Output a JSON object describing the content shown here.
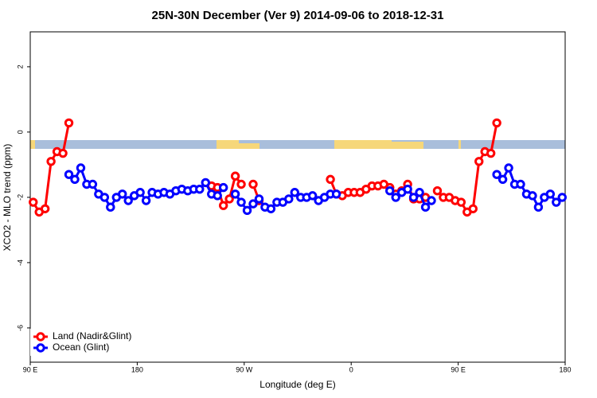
{
  "chart_data": {
    "type": "line",
    "title": "25N-30N December (Ver 9)   2014-09-06 to 2018-12-31",
    "x_label": "Longitude (deg E)",
    "y_label": "XCO2 - MLO trend (ppm)",
    "x": [
      92.5,
      97.5,
      102.5,
      107.5,
      112.5,
      117.5,
      122.5,
      127.5,
      132.5,
      137.5,
      142.5,
      147.5,
      152.5,
      157.5,
      162.5,
      167.5,
      172.5,
      177.5,
      182.5,
      187.5,
      192.5,
      197.5,
      202.5,
      207.5,
      212.5,
      217.5,
      222.5,
      227.5,
      232.5,
      237.5,
      242.5,
      247.5,
      252.5,
      257.5,
      262.5,
      267.5,
      272.5,
      277.5,
      282.5,
      287.5,
      292.5,
      297.5,
      302.5,
      307.5,
      312.5,
      317.5,
      322.5,
      327.5,
      332.5,
      337.5,
      342.5,
      347.5,
      352.5,
      357.5,
      362.5,
      367.5,
      372.5,
      377.5,
      382.5,
      387.5,
      392.5,
      397.5,
      402.5,
      407.5,
      412.5,
      417.5,
      422.5,
      427.5,
      432.5,
      437.5,
      442.5,
      447.5,
      452.5,
      457.5,
      462.5,
      467.5,
      472.5,
      477.5,
      482.5,
      487.5,
      492.5,
      497.5,
      502.5,
      507.5,
      512.5,
      517.5,
      522.5,
      527.5,
      532.5,
      537.5
    ],
    "series": [
      {
        "name": "Land (Nadir&Glint)",
        "color": "#ff0000",
        "values": [
          -2.15,
          -2.45,
          -2.35,
          -0.9,
          -0.6,
          -0.65,
          0.28,
          null,
          null,
          null,
          null,
          null,
          null,
          null,
          null,
          null,
          null,
          null,
          null,
          null,
          null,
          null,
          null,
          null,
          null,
          null,
          null,
          null,
          null,
          null,
          -1.65,
          -1.7,
          -2.25,
          -2.05,
          -1.35,
          -1.6,
          null,
          -1.6,
          -2.1,
          null,
          null,
          null,
          null,
          null,
          null,
          null,
          null,
          null,
          null,
          null,
          -1.45,
          -1.9,
          -1.95,
          -1.85,
          -1.85,
          -1.85,
          -1.75,
          -1.65,
          -1.65,
          -1.6,
          -1.7,
          -1.9,
          -1.8,
          -1.6,
          -2.05,
          -2.05,
          -2.0,
          null,
          -1.8,
          -2.0,
          -2.0,
          -2.1,
          -2.15,
          -2.45,
          -2.35,
          -0.9,
          -0.6,
          -0.65,
          0.28,
          null,
          null,
          null,
          null,
          null,
          null,
          null,
          null,
          null,
          null,
          null
        ]
      },
      {
        "name": "Ocean (Glint)",
        "color": "#0000ff",
        "values": [
          null,
          null,
          null,
          null,
          null,
          null,
          -1.3,
          -1.45,
          -1.1,
          -1.6,
          -1.6,
          -1.9,
          -2.0,
          -2.3,
          -2.0,
          -1.9,
          -2.1,
          -1.95,
          -1.85,
          -2.1,
          -1.85,
          -1.9,
          -1.85,
          -1.9,
          -1.8,
          -1.75,
          -1.8,
          -1.75,
          -1.75,
          -1.55,
          -1.9,
          -1.95,
          -1.7,
          null,
          -1.9,
          -2.15,
          -2.4,
          -2.2,
          -2.05,
          -2.3,
          -2.35,
          -2.15,
          -2.15,
          -2.05,
          -1.85,
          -2.0,
          -2.0,
          -1.95,
          -2.1,
          -2.0,
          -1.9,
          -1.9,
          null,
          null,
          null,
          null,
          null,
          null,
          null,
          null,
          -1.8,
          -2.0,
          -1.85,
          -1.75,
          -2.0,
          -1.85,
          -2.3,
          -2.1,
          null,
          null,
          null,
          null,
          null,
          null,
          null,
          null,
          null,
          null,
          -1.3,
          -1.45,
          -1.1,
          -1.6,
          -1.6,
          -1.9,
          -1.95,
          -2.3,
          -2.0,
          -1.9,
          -2.15,
          -2.0
        ]
      }
    ],
    "xlim": [
      90,
      540
    ],
    "xticks": [
      {
        "value": 90,
        "label": "90 E"
      },
      180,
      {
        "value": 270,
        "label": "90 W"
      },
      {
        "value": 360,
        "label": "0"
      },
      {
        "value": 450,
        "label": "90 E"
      },
      180
    ],
    "ylim": [
      -7.05,
      3.07
    ],
    "yticks": [
      -6,
      -4,
      -2,
      0,
      2
    ],
    "legend": "bottomleft"
  }
}
